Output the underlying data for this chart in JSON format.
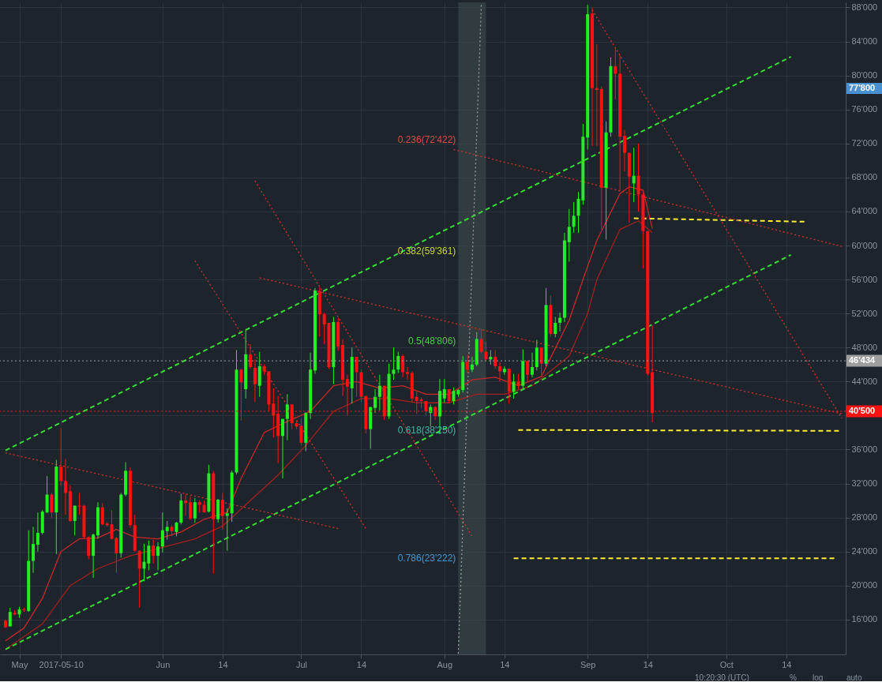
{
  "chart_data": {
    "type": "candlestick",
    "x": [
      "2017-04-28",
      "2017-04-29",
      "2017-04-30",
      "2017-05-01",
      "2017-05-02",
      "2017-05-03",
      "2017-05-04",
      "2017-05-05",
      "2017-05-06",
      "2017-05-07",
      "2017-05-08",
      "2017-05-09",
      "2017-05-10",
      "2017-05-11",
      "2017-05-12",
      "2017-05-13",
      "2017-05-14",
      "2017-05-15",
      "2017-05-16",
      "2017-05-17",
      "2017-05-18",
      "2017-05-19",
      "2017-05-20",
      "2017-05-21",
      "2017-05-22",
      "2017-05-23",
      "2017-05-24",
      "2017-05-25",
      "2017-05-26",
      "2017-05-27",
      "2017-05-28",
      "2017-05-29",
      "2017-05-30",
      "2017-05-31",
      "2017-06-01",
      "2017-06-02",
      "2017-06-03",
      "2017-06-04",
      "2017-06-05",
      "2017-06-06",
      "2017-06-07",
      "2017-06-08",
      "2017-06-09",
      "2017-06-10",
      "2017-06-11",
      "2017-06-12",
      "2017-06-13",
      "2017-06-14",
      "2017-06-15",
      "2017-06-16",
      "2017-06-17",
      "2017-06-18",
      "2017-06-19",
      "2017-06-20",
      "2017-06-21",
      "2017-06-22",
      "2017-06-23",
      "2017-06-24",
      "2017-06-25",
      "2017-06-26",
      "2017-06-27",
      "2017-06-28",
      "2017-06-29",
      "2017-06-30",
      "2017-07-01",
      "2017-07-02",
      "2017-07-03",
      "2017-07-04",
      "2017-07-05",
      "2017-07-06",
      "2017-07-07",
      "2017-07-08",
      "2017-07-09",
      "2017-07-10",
      "2017-07-11",
      "2017-07-12",
      "2017-07-13",
      "2017-07-14",
      "2017-07-15",
      "2017-07-16",
      "2017-07-17",
      "2017-07-18",
      "2017-07-19",
      "2017-07-20",
      "2017-07-21",
      "2017-07-22",
      "2017-07-23",
      "2017-07-24",
      "2017-07-25",
      "2017-07-26",
      "2017-07-27",
      "2017-07-28",
      "2017-07-29",
      "2017-07-30",
      "2017-07-31",
      "2017-08-01",
      "2017-08-02",
      "2017-08-03",
      "2017-08-04",
      "2017-08-05",
      "2017-08-06",
      "2017-08-07",
      "2017-08-08",
      "2017-08-09",
      "2017-08-10",
      "2017-08-11",
      "2017-08-12",
      "2017-08-13",
      "2017-08-14",
      "2017-08-15",
      "2017-08-16",
      "2017-08-17",
      "2017-08-18",
      "2017-08-19",
      "2017-08-20",
      "2017-08-21",
      "2017-08-22",
      "2017-08-23",
      "2017-08-24",
      "2017-08-25",
      "2017-08-26",
      "2017-08-27",
      "2017-08-28",
      "2017-08-29",
      "2017-08-30",
      "2017-08-31",
      "2017-09-01",
      "2017-09-02",
      "2017-09-03",
      "2017-09-04",
      "2017-09-05",
      "2017-09-06",
      "2017-09-07",
      "2017-09-08",
      "2017-09-09",
      "2017-09-10",
      "2017-09-11",
      "2017-09-12",
      "2017-09-13",
      "2017-09-14",
      "2017-09-15"
    ],
    "ohlc": [
      [
        15850,
        16000,
        15000,
        15100
      ],
      [
        15200,
        17400,
        15200,
        16900
      ],
      [
        16800,
        17100,
        16500,
        16600
      ],
      [
        16600,
        17500,
        16200,
        17200
      ],
      [
        17200,
        17400,
        16900,
        17100
      ],
      [
        17000,
        26500,
        16900,
        22900
      ],
      [
        22900,
        26900,
        21500,
        24900
      ],
      [
        24800,
        28600,
        24000,
        26200
      ],
      [
        26200,
        28900,
        26000,
        28700
      ],
      [
        28600,
        32900,
        28500,
        30700
      ],
      [
        30700,
        30900,
        28000,
        28600
      ],
      [
        28600,
        34800,
        23700,
        34000
      ],
      [
        34000,
        38500,
        31700,
        32300
      ],
      [
        32300,
        34900,
        28300,
        30900
      ],
      [
        31100,
        31800,
        27500,
        27600
      ],
      [
        27600,
        29400,
        25900,
        29400
      ],
      [
        29400,
        30900,
        28300,
        29300
      ],
      [
        29400,
        29500,
        25500,
        25700
      ],
      [
        25700,
        25800,
        23100,
        23500
      ],
      [
        23500,
        26100,
        20900,
        26000
      ],
      [
        25900,
        29800,
        25500,
        29200
      ],
      [
        29200,
        29700,
        27100,
        27200
      ],
      [
        27300,
        27500,
        26900,
        27100
      ],
      [
        27200,
        28900,
        25400,
        25500
      ],
      [
        25600,
        25700,
        21500,
        23800
      ],
      [
        23800,
        30900,
        23300,
        30700
      ],
      [
        30700,
        34500,
        30500,
        33500
      ],
      [
        33500,
        33900,
        26800,
        27100
      ],
      [
        27100,
        28300,
        24000,
        24100
      ],
      [
        24100,
        24100,
        17400,
        22000
      ],
      [
        22000,
        24900,
        20500,
        22800
      ],
      [
        22600,
        25300,
        21800,
        24700
      ],
      [
        24700,
        25400,
        22600,
        23500
      ],
      [
        23500,
        25100,
        21800,
        24600
      ],
      [
        24600,
        28600,
        23900,
        26500
      ],
      [
        26400,
        27600,
        25400,
        26900
      ],
      [
        26900,
        27100,
        25800,
        26400
      ],
      [
        26300,
        27500,
        25800,
        27400
      ],
      [
        27400,
        30800,
        27200,
        30000
      ],
      [
        30000,
        30800,
        28200,
        29700
      ],
      [
        29800,
        30500,
        27700,
        27900
      ],
      [
        27900,
        30300,
        27400,
        29800
      ],
      [
        29800,
        30000,
        28600,
        29500
      ],
      [
        29500,
        30000,
        28600,
        28600
      ],
      [
        28700,
        34200,
        28600,
        33200
      ],
      [
        33200,
        33500,
        21400,
        27800
      ],
      [
        27800,
        30200,
        27400,
        30100
      ],
      [
        30100,
        30900,
        26600,
        28200
      ],
      [
        28200,
        29100,
        24100,
        28500
      ],
      [
        28500,
        33500,
        27500,
        33300
      ],
      [
        33300,
        47700,
        33100,
        45400
      ],
      [
        45400,
        45500,
        39400,
        43900
      ],
      [
        43100,
        50100,
        42000,
        47200
      ],
      [
        47200,
        48400,
        45500,
        45700
      ],
      [
        45600,
        46600,
        41600,
        43700
      ],
      [
        43500,
        47500,
        42200,
        45800
      ],
      [
        45800,
        46000,
        44800,
        45200
      ],
      [
        45200,
        45200,
        40500,
        41300
      ],
      [
        41400,
        43200,
        37400,
        40000
      ],
      [
        40200,
        42300,
        34400,
        37600
      ],
      [
        37600,
        39600,
        32600,
        39600
      ],
      [
        39600,
        42500,
        37100,
        41300
      ],
      [
        41300,
        41300,
        38400,
        39100
      ],
      [
        39100,
        39400,
        38400,
        38700
      ],
      [
        38800,
        39600,
        36500,
        36800
      ],
      [
        36800,
        40400,
        35800,
        40300
      ],
      [
        40300,
        47400,
        39600,
        45400
      ],
      [
        45300,
        55000,
        44900,
        54700
      ],
      [
        54600,
        55100,
        49300,
        51900
      ],
      [
        51900,
        52100,
        48400,
        50700
      ],
      [
        50900,
        50900,
        45500,
        45700
      ],
      [
        45700,
        51600,
        43700,
        51000
      ],
      [
        51000,
        51500,
        47600,
        48100
      ],
      [
        48300,
        49000,
        42300,
        44200
      ],
      [
        44300,
        44800,
        40000,
        43400
      ],
      [
        43200,
        48000,
        41400,
        46900
      ],
      [
        46900,
        46900,
        42200,
        45100
      ],
      [
        45100,
        45400,
        41600,
        42200
      ],
      [
        42300,
        42300,
        37900,
        38400
      ],
      [
        38400,
        41000,
        36100,
        41000
      ],
      [
        40900,
        43100,
        40300,
        42200
      ],
      [
        42200,
        44800,
        40600,
        43500
      ],
      [
        43500,
        43500,
        39500,
        39900
      ],
      [
        39900,
        46100,
        39600,
        44900
      ],
      [
        44900,
        48000,
        44200,
        45400
      ],
      [
        45400,
        47500,
        45000,
        47000
      ],
      [
        47000,
        47200,
        44500,
        45100
      ],
      [
        45100,
        45700,
        44200,
        44900
      ],
      [
        45000,
        45200,
        41600,
        42000
      ],
      [
        42200,
        42800,
        40200,
        41700
      ],
      [
        41900,
        42100,
        40900,
        41700
      ],
      [
        41700,
        41700,
        40000,
        40500
      ],
      [
        40300,
        41300,
        38700,
        41000
      ],
      [
        41000,
        41100,
        39500,
        39900
      ],
      [
        39900,
        44300,
        37800,
        42900
      ],
      [
        42000,
        44300,
        41500,
        43100
      ],
      [
        43100,
        43100,
        41400,
        41700
      ],
      [
        41700,
        43300,
        41300,
        42900
      ],
      [
        42500,
        43100,
        42200,
        43000
      ],
      [
        43000,
        47000,
        42700,
        46300
      ],
      [
        46300,
        47100,
        45000,
        45400
      ],
      [
        45400,
        46900,
        45100,
        46000
      ],
      [
        46000,
        49800,
        45800,
        49000
      ],
      [
        49000,
        50200,
        47300,
        47500
      ],
      [
        47500,
        48700,
        46400,
        46600
      ],
      [
        46600,
        47700,
        46000,
        46900
      ],
      [
        46900,
        47700,
        45500,
        45800
      ],
      [
        45800,
        46300,
        44000,
        45200
      ],
      [
        45100,
        45800,
        44800,
        45500
      ],
      [
        45500,
        45500,
        41400,
        42800
      ],
      [
        42800,
        44900,
        42000,
        44000
      ],
      [
        44000,
        44900,
        43100,
        43500
      ],
      [
        43500,
        47800,
        43200,
        46400
      ],
      [
        46400,
        46500,
        44000,
        44800
      ],
      [
        44800,
        47400,
        44500,
        45700
      ],
      [
        45700,
        48900,
        45300,
        48000
      ],
      [
        48000,
        48000,
        44800,
        46100
      ],
      [
        46100,
        55000,
        45800,
        53000
      ],
      [
        53000,
        54100,
        49300,
        49600
      ],
      [
        49600,
        51600,
        49200,
        50900
      ],
      [
        50900,
        52100,
        49900,
        51500
      ],
      [
        51500,
        61500,
        51000,
        60600
      ],
      [
        60400,
        64300,
        58100,
        62200
      ],
      [
        62200,
        65100,
        61500,
        63500
      ],
      [
        63500,
        66300,
        61500,
        65500
      ],
      [
        65300,
        74300,
        64800,
        72800
      ],
      [
        72700,
        88300,
        71300,
        87200
      ],
      [
        87300,
        88000,
        71700,
        78500
      ],
      [
        78500,
        83700,
        71700,
        78300
      ],
      [
        78400,
        78700,
        61900,
        66800
      ],
      [
        66800,
        74600,
        60700,
        73300
      ],
      [
        73300,
        82100,
        72800,
        81100
      ],
      [
        81100,
        83300,
        77200,
        80200
      ],
      [
        80200,
        82400,
        66400,
        72800
      ],
      [
        72900,
        73600,
        68700,
        70900
      ],
      [
        70900,
        70900,
        62700,
        68100
      ],
      [
        67300,
        71500,
        65100,
        68200
      ],
      [
        68200,
        72000,
        64000,
        66000
      ],
      [
        66000,
        66200,
        57300,
        61700
      ],
      [
        61700,
        61700,
        44700,
        44900
      ],
      [
        45100,
        50600,
        39200,
        40300
      ]
    ],
    "colors": [
      "#ff1111",
      "#22ee22",
      "#ff1111",
      "#22ee22",
      "#ff1111",
      "#22ee22",
      "#22ee22",
      "#22ee22",
      "#22ee22",
      "#22ee22",
      "#ff1111",
      "#22ee22",
      "#ff1111",
      "#ff1111",
      "#ff1111",
      "#22ee22",
      "#ff1111",
      "#ff1111",
      "#ff1111",
      "#22ee22",
      "#22ee22",
      "#ff1111",
      "#ff1111",
      "#ff1111",
      "#ff1111",
      "#22ee22",
      "#22ee22",
      "#ff1111",
      "#ff1111",
      "#ff1111",
      "#22ee22",
      "#22ee22",
      "#ff1111",
      "#22ee22",
      "#22ee22",
      "#22ee22",
      "#ff1111",
      "#22ee22",
      "#22ee22",
      "#ff1111",
      "#ff1111",
      "#22ee22",
      "#ff1111",
      "#ff1111",
      "#22ee22",
      "#ff1111",
      "#22ee22",
      "#ff1111",
      "#22ee22",
      "#22ee22",
      "#22ee22",
      "#ff1111",
      "#22ee22",
      "#ff1111",
      "#ff1111",
      "#22ee22",
      "#ff1111",
      "#ff1111",
      "#ff1111",
      "#ff1111",
      "#22ee22",
      "#22ee22",
      "#ff1111",
      "#ff1111",
      "#ff1111",
      "#22ee22",
      "#22ee22",
      "#22ee22",
      "#ff1111",
      "#ff1111",
      "#ff1111",
      "#22ee22",
      "#ff1111",
      "#ff1111",
      "#ff1111",
      "#22ee22",
      "#ff1111",
      "#ff1111",
      "#ff1111",
      "#22ee22",
      "#22ee22",
      "#22ee22",
      "#ff1111",
      "#22ee22",
      "#22ee22",
      "#22ee22",
      "#ff1111",
      "#ff1111",
      "#ff1111",
      "#ff1111",
      "#ff1111",
      "#ff1111",
      "#22ee22",
      "#ff1111",
      "#22ee22",
      "#22ee22",
      "#ff1111",
      "#22ee22",
      "#22ee22",
      "#22ee22",
      "#ff1111",
      "#22ee22",
      "#22ee22",
      "#ff1111",
      "#ff1111",
      "#22ee22",
      "#ff1111",
      "#ff1111",
      "#22ee22",
      "#ff1111",
      "#22ee22",
      "#ff1111",
      "#22ee22",
      "#ff1111",
      "#22ee22",
      "#22ee22",
      "#ff1111",
      "#22ee22",
      "#ff1111",
      "#22ee22",
      "#22ee22",
      "#22ee22",
      "#22ee22",
      "#22ee22",
      "#22ee22",
      "#22ee22",
      "#22ee22",
      "#ff1111",
      "#ff1111",
      "#ff1111",
      "#22ee22",
      "#22ee22",
      "#ff1111",
      "#ff1111",
      "#ff1111",
      "#ff1111",
      "#22ee22",
      "#ff1111",
      "#ff1111",
      "#ff1111",
      "#ff1111"
    ],
    "series": [
      {
        "type": "line",
        "color": "#c62828",
        "line_style": "solid",
        "x": [
          "2017-04-28",
          "2017-05-02",
          "2017-05-06",
          "2017-05-10",
          "2017-05-14",
          "2017-05-18",
          "2017-05-22",
          "2017-05-26",
          "2017-05-31",
          "2017-06-05",
          "2017-06-10",
          "2017-06-15",
          "2017-06-18",
          "2017-06-23",
          "2017-06-28",
          "2017-07-03",
          "2017-07-08",
          "2017-07-13",
          "2017-07-18",
          "2017-07-23",
          "2017-07-28",
          "2017-08-02",
          "2017-08-07",
          "2017-08-12",
          "2017-08-17",
          "2017-08-22",
          "2017-08-28",
          "2017-08-31",
          "2017-09-03",
          "2017-09-08",
          "2017-09-10",
          "2017-09-13",
          "2017-09-15"
        ],
        "values": [
          13500,
          15000,
          18500,
          24000,
          25500,
          25600,
          26600,
          25700,
          25500,
          26300,
          27800,
          28600,
          32600,
          38000,
          39300,
          40500,
          43500,
          44000,
          43200,
          43500,
          42500,
          42500,
          44200,
          44500,
          43500,
          44600,
          51200,
          56000,
          60600,
          66100,
          66900,
          66500,
          62000
        ]
      },
      {
        "type": "line",
        "color": "#a52020",
        "line_style": "solid",
        "x": [
          "2017-04-28",
          "2017-05-06",
          "2017-05-12",
          "2017-05-18",
          "2017-05-25",
          "2017-06-01",
          "2017-06-08",
          "2017-06-14",
          "2017-06-20",
          "2017-06-26",
          "2017-07-02",
          "2017-07-08",
          "2017-07-14",
          "2017-07-20",
          "2017-07-26",
          "2017-08-02",
          "2017-08-08",
          "2017-08-14",
          "2017-08-20",
          "2017-08-28",
          "2017-09-01",
          "2017-09-03",
          "2017-09-08",
          "2017-09-12",
          "2017-09-15"
        ],
        "values": [
          12500,
          15500,
          20000,
          22000,
          23500,
          24500,
          25500,
          27000,
          30000,
          33000,
          36500,
          40500,
          42000,
          42000,
          41500,
          41500,
          42500,
          42500,
          43500,
          47000,
          52000,
          56000,
          61900,
          62900,
          61500
        ]
      },
      {
        "type": "line",
        "color": "#33dd33",
        "line_style": "dashed",
        "x": [
          "2017-04-28",
          "2017-10-15"
        ],
        "values": [
          35900,
          82200
        ]
      },
      {
        "type": "line",
        "color": "#33dd33",
        "line_style": "dashed",
        "x": [
          "2017-04-28",
          "2017-10-15"
        ],
        "values": [
          12500,
          58900
        ]
      },
      {
        "type": "line",
        "color": "#ffee33",
        "line_style": "dashed",
        "x": [
          "2017-09-11",
          "2017-10-18"
        ],
        "values": [
          63200,
          62800
        ]
      },
      {
        "type": "line",
        "color": "#ffee33",
        "line_style": "dashed",
        "x": [
          "2017-08-17",
          "2017-10-26"
        ],
        "values": [
          38300,
          38200
        ]
      },
      {
        "type": "line",
        "color": "#ffee33",
        "line_style": "dashed",
        "x": [
          "2017-08-16",
          "2017-10-25"
        ],
        "values": [
          23200,
          23200
        ]
      },
      {
        "type": "line",
        "color": "#d32f2f",
        "line_style": "dotted",
        "x": [
          "2017-04-28",
          "2017-07-09"
        ],
        "values": [
          35600,
          26700
        ]
      },
      {
        "type": "line",
        "color": "#d32f2f",
        "line_style": "dotted",
        "x": [
          "2017-06-08",
          "2017-07-15"
        ],
        "values": [
          58200,
          26700
        ]
      },
      {
        "type": "line",
        "color": "#d32f2f",
        "line_style": "dotted",
        "x": [
          "2017-06-21",
          "2017-08-07"
        ],
        "values": [
          67600,
          25800
        ]
      },
      {
        "type": "line",
        "color": "#d32f2f",
        "line_style": "dotted",
        "x": [
          "2017-06-22",
          "2017-10-26"
        ],
        "values": [
          56200,
          40200
        ]
      },
      {
        "type": "line",
        "color": "#d32f2f",
        "line_style": "dotted",
        "x": [
          "2017-08-03",
          "2017-10-26"
        ],
        "values": [
          71300,
          59900
        ]
      },
      {
        "type": "line",
        "color": "#d32f2f",
        "line_style": "dotted",
        "x": [
          "2017-09-02",
          "2017-10-26"
        ],
        "values": [
          87700,
          39700
        ]
      },
      {
        "type": "line",
        "color": "#9a9a9a",
        "line_style": "dotted",
        "x": [
          "2017-08-04",
          "2017-08-09"
        ],
        "values": [
          12000,
          88500
        ]
      }
    ],
    "bands": [
      {
        "axis": "x",
        "from": "2017-08-04",
        "to": "2017-08-10",
        "color": "#3e4d4e"
      }
    ],
    "ref_lines": [
      {
        "axis": "y",
        "value": 46434,
        "label": "46'434",
        "color": "#9e9e9e",
        "line_style": "dotted"
      },
      {
        "axis": "y",
        "value": 40500,
        "label": "40'500",
        "color": "#ff1111",
        "line_style": "dotted"
      }
    ],
    "annotations": [
      {
        "text": "0.236(72'422)",
        "x": "2017-08-04",
        "y": 72422
      },
      {
        "text": "0.382(59'361)",
        "x": "2017-08-04",
        "y": 59361
      },
      {
        "text": "0.5(48'806)",
        "x": "2017-08-04",
        "y": 48806
      },
      {
        "text": "0.618(38'250)",
        "x": "2017-08-04",
        "y": 38250
      },
      {
        "text": "0.786(23'222)",
        "x": "2017-08-04",
        "y": 23222
      },
      "77'800",
      "10:20:30 (UTC)",
      "%",
      "log",
      "auto"
    ],
    "xlim": [
      "2017-04-27T16:00",
      "2017-10-26"
    ],
    "ylim": [
      11900,
      88600
    ],
    "xticks": [
      {
        "value": "2017-05-01",
        "label": "May"
      },
      {
        "value": "2017-05-10",
        "label": "2017-05-10"
      },
      {
        "value": "2017-06-01",
        "label": "Jun"
      },
      {
        "value": "2017-06-14",
        "label": "14"
      },
      {
        "value": "2017-07-01",
        "label": "Jul"
      },
      {
        "value": "2017-07-14",
        "label": "14"
      },
      {
        "value": "2017-08-01",
        "label": "Aug"
      },
      {
        "value": "2017-08-14",
        "label": "14"
      },
      {
        "value": "2017-09-01",
        "label": "Sep"
      },
      {
        "value": "2017-09-14",
        "label": "14"
      },
      {
        "value": "2017-10-01",
        "label": "Oct"
      },
      {
        "value": "2017-10-14",
        "label": "14"
      }
    ],
    "yticks": [
      {
        "value": 16000,
        "label": "16'000"
      },
      {
        "value": 20000,
        "label": "20'000"
      },
      {
        "value": 24000,
        "label": "24'000"
      },
      {
        "value": 28000,
        "label": "28'000"
      },
      {
        "value": 32000,
        "label": "32'000"
      },
      {
        "value": 36000,
        "label": "36'000"
      },
      {
        "value": 40000,
        "label": null
      },
      {
        "value": 44000,
        "label": "44'000"
      },
      {
        "value": 48000,
        "label": "48'000"
      },
      {
        "value": 52000,
        "label": "52'000"
      },
      {
        "value": 56000,
        "label": "56'000"
      },
      {
        "value": 60000,
        "label": "60'000"
      },
      {
        "value": 64000,
        "label": "64'000"
      },
      {
        "value": 68000,
        "label": "68'000"
      },
      {
        "value": 72000,
        "label": "72'000"
      },
      {
        "value": 76000,
        "label": "76'000"
      },
      {
        "value": 80000,
        "label": "80'000"
      },
      {
        "value": 84000,
        "label": "84'000"
      },
      {
        "value": 88000,
        "label": "88'000"
      }
    ],
    "grid": true
  }
}
